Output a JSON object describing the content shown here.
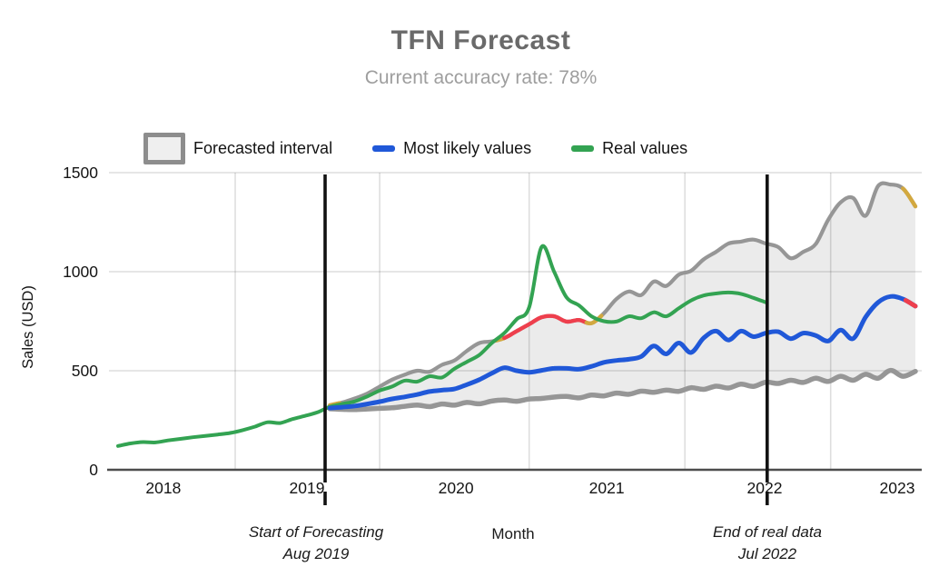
{
  "title": "TFN Forecast",
  "subtitle": "Current accuracy rate: 78%",
  "legend": {
    "interval_label": "Forecasted interval",
    "likely_label": "Most likely values",
    "real_label": "Real values"
  },
  "axes": {
    "y_label": "Sales (USD)",
    "x_label": "Month",
    "y_ticks": [
      0,
      500,
      1000,
      1500
    ],
    "x_tick_labels": [
      "2018",
      "2019",
      "2020",
      "2021",
      "2022",
      "2023"
    ]
  },
  "annotations": {
    "start": {
      "line1": "Start of Forecasting",
      "line2": "Aug 2019",
      "index": 16.62
    },
    "end": {
      "line1": "End of real data",
      "line2": "Jul 2022",
      "index": 52.1
    }
  },
  "colors": {
    "real": "#33a352",
    "likely": "#2058d8",
    "band_fill": "#ebebeb",
    "band_edge": "#969696",
    "exceed_red": "#ee3f4d",
    "exceed_yellow": "#d2a83f",
    "annotation_line": "#121212",
    "gridline": "rgba(0,0,0,0.13)",
    "axis_line": "#4d4d4d",
    "title": "#6a6a6a",
    "subtitle": "#9e9e9e"
  },
  "chart_data": {
    "type": "line",
    "title": "TFN Forecast",
    "subtitle": "Current accuracy rate: 78%",
    "xlabel": "Month",
    "ylabel": "Sales (USD)",
    "ylim": [
      0,
      1500
    ],
    "grid": true,
    "legend_position": "top",
    "x_unit": "month index, one point per month (index 0 = first plotted month, early 2018)",
    "x_tick_labels": [
      "2018",
      "2019",
      "2020",
      "2021",
      "2022",
      "2023"
    ],
    "x_label_indices": [
      3.64,
      15.16,
      27.12,
      39.22,
      51.9,
      62.54
    ],
    "x_gridline_indices": [
      9.4,
      21.0,
      33.0,
      45.5,
      57.2
    ],
    "forecast_start_label": "Aug 2019",
    "real_data_end_label": "Jul 2022",
    "series": [
      {
        "name": "Real values",
        "start_index": 0,
        "values": [
          120,
          133,
          140,
          138,
          148,
          156,
          164,
          171,
          178,
          186,
          200,
          218,
          240,
          236,
          256,
          272,
          290,
          318,
          332,
          345,
          370,
          400,
          420,
          450,
          445,
          472,
          466,
          510,
          545,
          580,
          640,
          690,
          760,
          820,
          1125,
          1000,
          870,
          830,
          775,
          750,
          748,
          775,
          765,
          795,
          775,
          815,
          855,
          880,
          890,
          895,
          888,
          868,
          845
        ]
      },
      {
        "name": "Most likely values",
        "start_index": 17,
        "values": [
          312,
          316,
          322,
          332,
          344,
          358,
          368,
          380,
          395,
          402,
          408,
          430,
          455,
          487,
          515,
          500,
          492,
          502,
          512,
          512,
          508,
          522,
          542,
          552,
          558,
          572,
          625,
          585,
          640,
          592,
          665,
          700,
          655,
          700,
          672,
          690,
          697,
          662,
          690,
          678,
          650,
          705,
          662,
          770,
          845,
          875,
          862,
          826
        ]
      },
      {
        "name": "Forecast upper bound",
        "start_index": 17,
        "values": [
          326,
          340,
          360,
          385,
          420,
          455,
          480,
          500,
          495,
          530,
          552,
          600,
          640,
          648,
          665,
          700,
          735,
          770,
          775,
          748,
          756,
          740,
          790,
          862,
          900,
          882,
          950,
          928,
          985,
          1005,
          1062,
          1100,
          1142,
          1152,
          1162,
          1142,
          1124,
          1068,
          1100,
          1140,
          1262,
          1350,
          1372,
          1282,
          1432,
          1440,
          1420,
          1330
        ]
      },
      {
        "name": "Forecast lower bound",
        "start_index": 17,
        "values": [
          308,
          305,
          304,
          307,
          310,
          313,
          320,
          327,
          319,
          332,
          326,
          340,
          333,
          347,
          352,
          346,
          357,
          360,
          367,
          370,
          363,
          377,
          373,
          387,
          381,
          397,
          391,
          402,
          396,
          414,
          406,
          422,
          413,
          432,
          421,
          442,
          436,
          452,
          441,
          462,
          446,
          472,
          452,
          482,
          462,
          502,
          472,
          497
        ]
      }
    ],
    "upper_bound_color_segments": [
      {
        "from": 17.0,
        "to": 17.8,
        "color": "#d2a83f"
      },
      {
        "from": 30.3,
        "to": 31.0,
        "color": "#d2a83f"
      },
      {
        "from": 31.0,
        "to": 37.6,
        "color": "#ee3f4d"
      },
      {
        "from": 37.6,
        "to": 38.8,
        "color": "#d2a83f"
      },
      {
        "from": 63.0,
        "to": 64.0,
        "color": "#d2a83f"
      }
    ],
    "likely_color_segments": [
      {
        "from": 63.2,
        "to": 64.0,
        "color": "#ee3f4d"
      }
    ]
  }
}
